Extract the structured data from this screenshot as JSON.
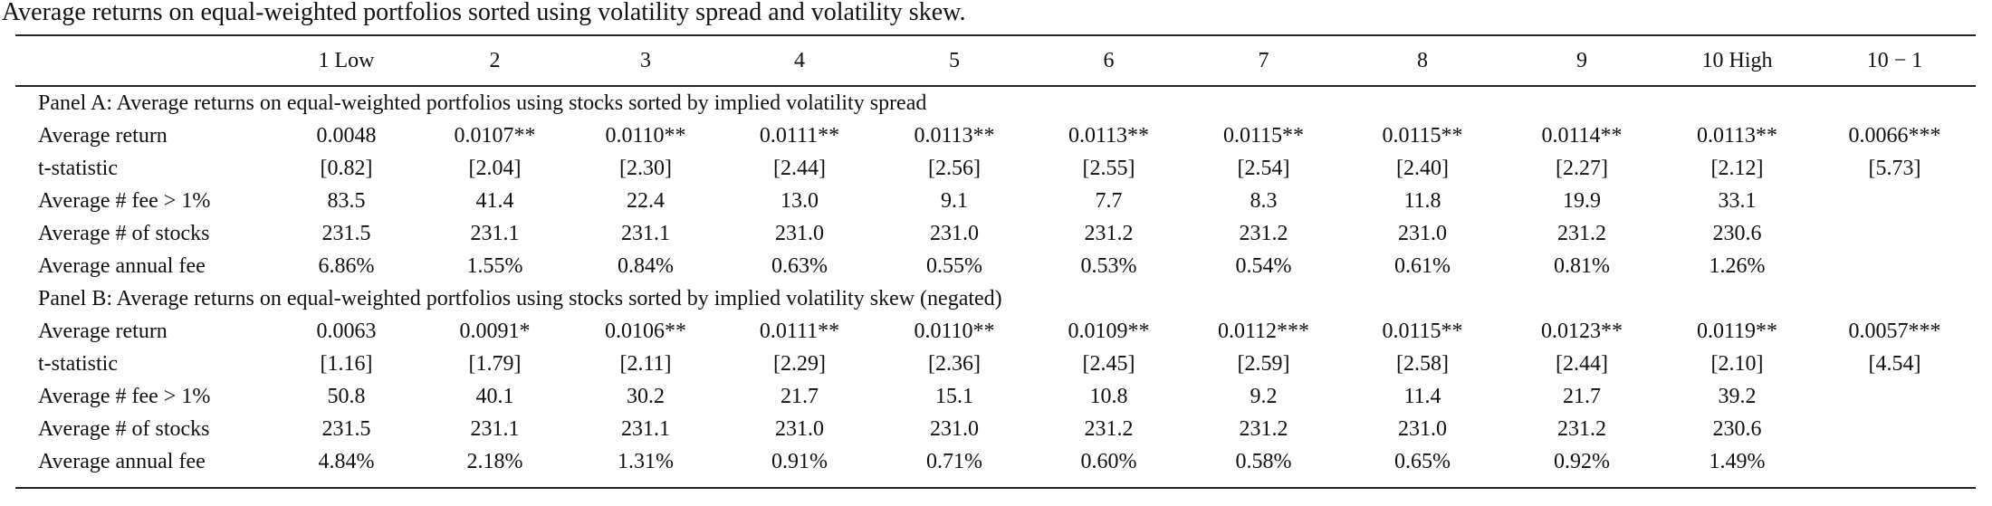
{
  "title": "Average returns on equal-weighted portfolios sorted using volatility spread and volatility skew.",
  "table": {
    "columns": [
      "1 Low",
      "2",
      "3",
      "4",
      "5",
      "6",
      "7",
      "8",
      "9",
      "10 High",
      "10 − 1"
    ],
    "panels": [
      {
        "title": "Panel A: Average returns on equal-weighted portfolios using stocks sorted by implied volatility spread",
        "rows": [
          {
            "label": "Average return",
            "cells": [
              "0.0048",
              "0.0107**",
              "0.0110**",
              "0.0111**",
              "0.0113**",
              "0.0113**",
              "0.0115**",
              "0.0115**",
              "0.0114**",
              "0.0113**",
              "0.0066***"
            ]
          },
          {
            "label": "t-statistic",
            "cells": [
              "[0.82]",
              "[2.04]",
              "[2.30]",
              "[2.44]",
              "[2.56]",
              "[2.55]",
              "[2.54]",
              "[2.40]",
              "[2.27]",
              "[2.12]",
              "[5.73]"
            ]
          },
          {
            "label": "Average # fee > 1%",
            "cells": [
              "83.5",
              "41.4",
              "22.4",
              "13.0",
              "9.1",
              "7.7",
              "8.3",
              "11.8",
              "19.9",
              "33.1"
            ]
          },
          {
            "label": "Average # of stocks",
            "cells": [
              "231.5",
              "231.1",
              "231.1",
              "231.0",
              "231.0",
              "231.2",
              "231.2",
              "231.0",
              "231.2",
              "230.6"
            ]
          },
          {
            "label": "Average annual fee",
            "cells": [
              "6.86%",
              "1.55%",
              "0.84%",
              "0.63%",
              "0.55%",
              "0.53%",
              "0.54%",
              "0.61%",
              "0.81%",
              "1.26%"
            ]
          }
        ]
      },
      {
        "title": "Panel B: Average returns on equal-weighted portfolios using stocks sorted by implied volatility skew (negated)",
        "rows": [
          {
            "label": "Average return",
            "cells": [
              "0.0063",
              "0.0091*",
              "0.0106**",
              "0.0111**",
              "0.0110**",
              "0.0109**",
              "0.0112***",
              "0.0115**",
              "0.0123**",
              "0.0119**",
              "0.0057***"
            ]
          },
          {
            "label": "t-statistic",
            "cells": [
              "[1.16]",
              "[1.79]",
              "[2.11]",
              "[2.29]",
              "[2.36]",
              "[2.45]",
              "[2.59]",
              "[2.58]",
              "[2.44]",
              "[2.10]",
              "[4.54]"
            ]
          },
          {
            "label": "Average # fee > 1%",
            "cells": [
              "50.8",
              "40.1",
              "30.2",
              "21.7",
              "15.1",
              "10.8",
              "9.2",
              "11.4",
              "21.7",
              "39.2"
            ]
          },
          {
            "label": "Average # of stocks",
            "cells": [
              "231.5",
              "231.1",
              "231.1",
              "231.0",
              "231.0",
              "231.2",
              "231.2",
              "231.0",
              "231.2",
              "230.6"
            ]
          },
          {
            "label": "Average annual fee",
            "cells": [
              "4.84%",
              "2.18%",
              "1.31%",
              "0.91%",
              "0.71%",
              "0.60%",
              "0.58%",
              "0.65%",
              "0.92%",
              "1.49%"
            ]
          }
        ]
      }
    ]
  }
}
